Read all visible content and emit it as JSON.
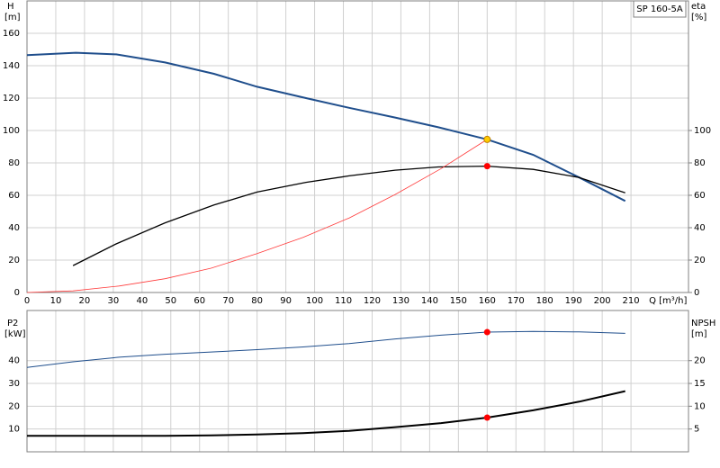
{
  "chart_data": [
    {
      "type": "line",
      "title": "SP 160-5A",
      "xlabel": "Q [m³/h]",
      "ylabel": "H",
      "yunit": "[m]",
      "y2label": "eta",
      "y2unit": "[%]",
      "xlim": [
        0,
        230
      ],
      "xticks": [
        0,
        10,
        20,
        30,
        40,
        50,
        60,
        70,
        80,
        90,
        100,
        110,
        120,
        130,
        140,
        150,
        160,
        170,
        180,
        190,
        200,
        210
      ],
      "ylim": [
        0,
        180
      ],
      "yticks": [
        0,
        20,
        40,
        60,
        80,
        100,
        120,
        140,
        160
      ],
      "y2lim": [
        0,
        180
      ],
      "y2ticks": [
        0,
        20,
        40,
        60,
        80,
        100
      ],
      "grid": true,
      "series": [
        {
          "color": "#1f4e8c",
          "width": 2,
          "axis": "y",
          "x": [
            0,
            17,
            31,
            48,
            65,
            80,
            97,
            112,
            128,
            143,
            160,
            176,
            192,
            208
          ],
          "values": [
            146.5,
            148,
            147,
            142,
            135,
            127,
            120,
            114,
            108,
            102,
            94.5,
            85,
            71,
            56.5
          ]
        },
        {
          "color": "#000000",
          "width": 1.3,
          "axis": "y2",
          "x": [
            16,
            31,
            48,
            65,
            80,
            97,
            112,
            128,
            143,
            160,
            176,
            192,
            208
          ],
          "values": [
            16.6,
            30,
            43,
            54,
            62,
            68,
            72,
            75.5,
            77.5,
            78,
            76,
            71,
            61.5
          ]
        },
        {
          "color": "#ff3b3b",
          "width": 0.8,
          "axis": "y",
          "x": [
            0,
            16,
            32,
            48,
            64,
            80,
            96,
            112,
            128,
            144,
            160
          ],
          "values": [
            0,
            1,
            4,
            8.5,
            15,
            24,
            34,
            46,
            60.5,
            76.5,
            94.5
          ]
        }
      ],
      "markers": [
        {
          "x": 160,
          "y": 94.5,
          "axis": "y",
          "color": "#ffcc00"
        },
        {
          "x": 160,
          "y": 78,
          "axis": "y2",
          "color": "#ff0000"
        }
      ]
    },
    {
      "type": "line",
      "ylabel": "P2",
      "yunit": "[kW]",
      "y2label": "NPSH",
      "y2unit": "[m]",
      "xlim": [
        0,
        230
      ],
      "xticks": [
        0,
        10,
        20,
        30,
        40,
        50,
        60,
        70,
        80,
        90,
        100,
        110,
        120,
        130,
        140,
        150,
        160,
        170,
        180,
        190,
        200,
        210
      ],
      "ylim": [
        0,
        62
      ],
      "yticks": [
        10,
        20,
        30,
        40
      ],
      "y2lim": [
        0,
        31
      ],
      "y2ticks": [
        5,
        10,
        15,
        20
      ],
      "grid": true,
      "series": [
        {
          "color": "#1f4e8c",
          "width": 1,
          "axis": "y",
          "x": [
            0,
            16,
            32,
            48,
            64,
            80,
            96,
            112,
            128,
            144,
            160,
            176,
            192,
            208
          ],
          "values": [
            37,
            39.5,
            41.5,
            42.8,
            43.8,
            44.8,
            46,
            47.5,
            49.5,
            51.2,
            52.5,
            52.8,
            52.6,
            52
          ]
        },
        {
          "color": "#000000",
          "width": 2,
          "axis": "y2",
          "x": [
            0,
            16,
            32,
            48,
            64,
            80,
            96,
            112,
            128,
            144,
            160,
            176,
            192,
            208
          ],
          "values": [
            3.5,
            3.5,
            3.5,
            3.5,
            3.6,
            3.8,
            4.1,
            4.6,
            5.4,
            6.3,
            7.5,
            9.1,
            11,
            13.3
          ]
        }
      ],
      "markers": [
        {
          "x": 160,
          "y": 52.5,
          "axis": "y",
          "color": "#ff0000"
        },
        {
          "x": 160,
          "y": 7.5,
          "axis": "y2",
          "color": "#ff0000"
        }
      ]
    }
  ]
}
